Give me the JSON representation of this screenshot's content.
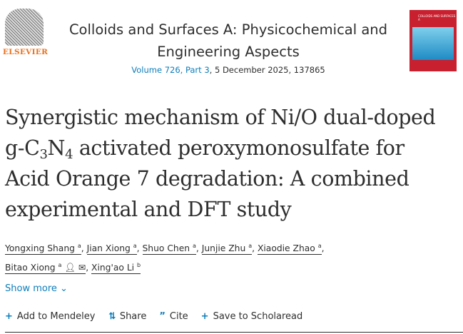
{
  "publisher": {
    "name": "ELSEVIER"
  },
  "journal": {
    "title": "Colloids and Surfaces A: Physicochemical and Engineering Aspects",
    "volume_link": "Volume 726, Part 3",
    "details": ", 5 December 2025, 137865",
    "cover_title": "COLLOIDS AND SURFACES A"
  },
  "article": {
    "title_lines": [
      "Synergistic mechanism of Ni/O dual-doped",
      "g-C",
      "3",
      "N",
      "4",
      " activated peroxymonosulfate for",
      "Acid Orange 7 degradation: A combined",
      "experimental and DFT study"
    ]
  },
  "authors": [
    {
      "name": "Yongxing Shang",
      "sup": "a"
    },
    {
      "name": "Jian Xiong",
      "sup": "a"
    },
    {
      "name": "Shuo Chen",
      "sup": "a"
    },
    {
      "name": "Junjie Zhu",
      "sup": "a"
    },
    {
      "name": "Xiaodie Zhao",
      "sup": "a"
    },
    {
      "name": "Bitao Xiong",
      "sup": "a"
    },
    {
      "name": "Xing'ao Li",
      "sup": "b"
    }
  ],
  "show_more": "Show more",
  "actions": {
    "mendeley": "Add to Mendeley",
    "share": "Share",
    "cite": "Cite",
    "scholaread": "Save to Scholaread"
  }
}
